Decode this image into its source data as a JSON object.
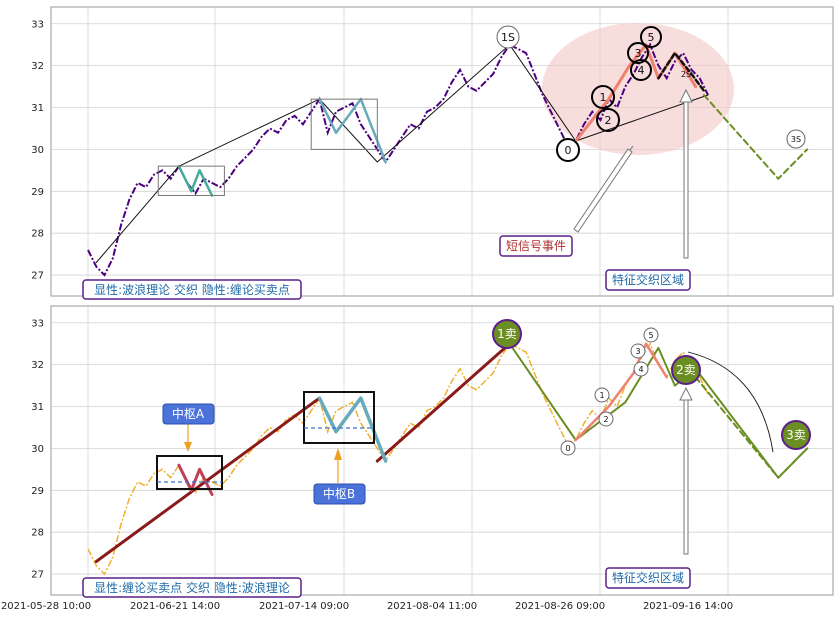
{
  "chart_data": [
    {
      "type": "line",
      "panel": "top",
      "ylim": [
        26.5,
        33.4
      ],
      "y_ticks": [
        27,
        28,
        29,
        30,
        31,
        32,
        33
      ],
      "grid": true,
      "price": [
        [
          0,
          27.6
        ],
        [
          2,
          27.2
        ],
        [
          4,
          27.0
        ],
        [
          6,
          27.4
        ],
        [
          8,
          28.2
        ],
        [
          10,
          28.8
        ],
        [
          12,
          29.2
        ],
        [
          14,
          29.1
        ],
        [
          16,
          29.4
        ],
        [
          18,
          29.5
        ],
        [
          20,
          29.3
        ],
        [
          22,
          29.6
        ],
        [
          24,
          29.2
        ],
        [
          26,
          28.95
        ],
        [
          28,
          29.3
        ],
        [
          30,
          29.2
        ],
        [
          32,
          29.1
        ],
        [
          34,
          29.3
        ],
        [
          36,
          29.6
        ],
        [
          38,
          29.8
        ],
        [
          40,
          30.0
        ],
        [
          42,
          30.3
        ],
        [
          44,
          30.5
        ],
        [
          46,
          30.4
        ],
        [
          48,
          30.7
        ],
        [
          50,
          30.8
        ],
        [
          52,
          30.6
        ],
        [
          54,
          30.9
        ],
        [
          56,
          31.2
        ],
        [
          58,
          30.4
        ],
        [
          60,
          30.9
        ],
        [
          62,
          31.0
        ],
        [
          64,
          31.1
        ],
        [
          66,
          30.6
        ],
        [
          68,
          30.3
        ],
        [
          70,
          30.0
        ],
        [
          72,
          29.7
        ],
        [
          74,
          30.0
        ],
        [
          76,
          30.3
        ],
        [
          78,
          30.6
        ],
        [
          80,
          30.5
        ],
        [
          82,
          30.9
        ],
        [
          84,
          31.0
        ],
        [
          86,
          31.2
        ],
        [
          88,
          31.6
        ],
        [
          90,
          31.9
        ],
        [
          92,
          31.5
        ],
        [
          94,
          31.4
        ],
        [
          96,
          31.6
        ],
        [
          98,
          31.8
        ],
        [
          100,
          32.2
        ],
        [
          102,
          32.5
        ],
        [
          104,
          32.4
        ],
        [
          106,
          32.3
        ],
        [
          108,
          31.8
        ],
        [
          110,
          31.3
        ],
        [
          112,
          30.9
        ],
        [
          114,
          30.5
        ],
        [
          116,
          30.1
        ],
        [
          118,
          30.2
        ],
        [
          120,
          30.6
        ],
        [
          122,
          30.9
        ],
        [
          124,
          30.7
        ],
        [
          126,
          31.2
        ],
        [
          128,
          31.0
        ],
        [
          130,
          31.5
        ],
        [
          132,
          31.8
        ],
        [
          134,
          32.2
        ],
        [
          136,
          32.5
        ],
        [
          138,
          32.0
        ],
        [
          140,
          31.7
        ],
        [
          142,
          32.1
        ],
        [
          144,
          32.3
        ],
        [
          146,
          31.9
        ],
        [
          148,
          31.7
        ],
        [
          150,
          31.3
        ]
      ],
      "annotations": [
        "1S",
        "0",
        "1",
        "2",
        "3",
        "4",
        "5",
        "2S",
        "3S",
        "短信号事件",
        "特征交织区域",
        "显性:波浪理论 交织 隐性:缠论买卖点"
      ]
    },
    {
      "type": "line",
      "panel": "bottom",
      "ylim": [
        26.5,
        33.4
      ],
      "y_ticks": [
        27,
        28,
        29,
        30,
        31,
        32,
        33
      ],
      "grid": true,
      "x_tick_labels": [
        "2021-05-28 10:00",
        "2021-06-21 14:00",
        "2021-07-14 09:00",
        "2021-08-04 11:00",
        "2021-08-26 09:00",
        "2021-09-16 14:00"
      ],
      "annotations": [
        "1卖",
        "2卖",
        "3卖",
        "中枢A",
        "中枢B",
        "0",
        "1",
        "2",
        "3",
        "4",
        "5",
        "特征交织区域",
        "显性:缠论买卖点 交织 隐性:波浪理论"
      ]
    }
  ],
  "labels": {
    "t_1s": "1S",
    "t_0": "0",
    "t_1": "1",
    "t_2": "2",
    "t_3": "3",
    "t_4": "4",
    "t_5": "5",
    "t_2s": "2S",
    "t_3s": "3S",
    "short_event": "短信号事件",
    "region_top": "特征交织区域",
    "legend_top": "显性:波浪理论 交织 隐性:缠论买卖点",
    "b_sell1": "1卖",
    "b_sell2": "2卖",
    "b_sell3": "3卖",
    "b_zsa": "中枢A",
    "b_zsb": "中枢B",
    "b_0": "0",
    "b_1": "1",
    "b_2": "2",
    "b_3": "3",
    "b_4": "4",
    "b_5": "5",
    "region_bottom": "特征交织区域",
    "legend_bottom": "显性:缠论买卖点 交织 隐性:波浪理论"
  },
  "colors": {
    "price_top": "#4b0082",
    "price_bottom": "#f0b030",
    "sell_marker": "#6b8e23",
    "pink_region": "#f4c6c6",
    "label_border": "#5b1e8b",
    "zs_fill": "#3f6fd8",
    "dashed_green": "#6b8e23"
  }
}
